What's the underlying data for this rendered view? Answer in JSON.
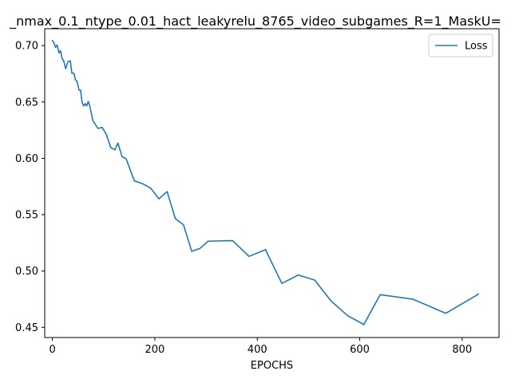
{
  "chart_data": {
    "type": "line",
    "title": "_nmax_0.1_ntype_0.01_hact_leakyrelu_8765_video_subgames_R=1_MaskU=",
    "xlabel": "EPOCHS",
    "ylabel": "",
    "xlim": [
      -15,
      872
    ],
    "ylim": [
      0.441,
      0.715
    ],
    "xticks": [
      0,
      200,
      400,
      600,
      800
    ],
    "yticks": [
      0.45,
      0.5,
      0.55,
      0.6,
      0.65,
      0.7
    ],
    "ytick_labels": [
      "0.45",
      "0.50",
      "0.55",
      "0.60",
      "0.65",
      "0.70"
    ],
    "xtick_labels": [
      "0",
      "200",
      "400",
      "600",
      "800"
    ],
    "grid": false,
    "legend_position": "upper right",
    "series": [
      {
        "name": "Loss",
        "color": "#1f77b4",
        "x": [
          0,
          3,
          6,
          9,
          13,
          16,
          19,
          22,
          26,
          30,
          35,
          38,
          42,
          45,
          48,
          52,
          55,
          58,
          61,
          64,
          67,
          70,
          73,
          79,
          89,
          97,
          105,
          114,
          122,
          128,
          136,
          144,
          160,
          176,
          192,
          208,
          224,
          240,
          256,
          272,
          288,
          304,
          352,
          384,
          416,
          448,
          480,
          512,
          544,
          576,
          608,
          640,
          704,
          768,
          832
        ],
        "y": [
          0.7045,
          0.7025,
          0.6985,
          0.7005,
          0.6935,
          0.6955,
          0.6885,
          0.6865,
          0.6795,
          0.6855,
          0.6865,
          0.6755,
          0.6755,
          0.6695,
          0.6685,
          0.6605,
          0.6605,
          0.6495,
          0.6465,
          0.6485,
          0.6465,
          0.6505,
          0.6465,
          0.6335,
          0.6265,
          0.6275,
          0.6215,
          0.6095,
          0.6075,
          0.6135,
          0.6015,
          0.5995,
          0.58,
          0.5775,
          0.5735,
          0.564,
          0.5705,
          0.5465,
          0.541,
          0.5175,
          0.52,
          0.5265,
          0.527,
          0.513,
          0.519,
          0.489,
          0.4965,
          0.492,
          0.4735,
          0.4605,
          0.4525,
          0.479,
          0.475,
          0.4625,
          0.4795
        ]
      }
    ]
  }
}
